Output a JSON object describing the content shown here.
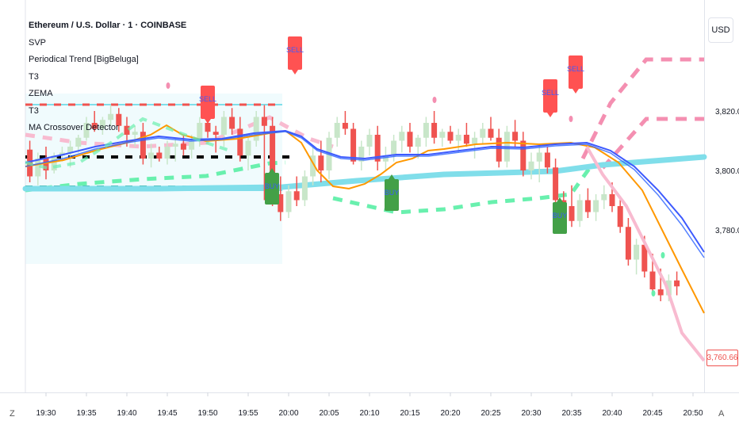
{
  "legend": {
    "title": "Ethereum / U.S. Dollar · 1 · COINBASE",
    "lines": [
      "SVP",
      "Periodical Trend [BigBeluga]",
      "T3",
      "ZEMA",
      "T3",
      "MA Crossover Detector"
    ]
  },
  "currency": "USD",
  "last_price": "3,760.66",
  "corner_left": "Z",
  "corner_right": "A",
  "colors": {
    "up": "#c8e6c9",
    "down": "#ef5350",
    "sell": "#ff5252",
    "buy": "#43a047",
    "orange": "#ff9800",
    "blue": "#3d5afe",
    "pink": "#f8bbd0",
    "cyan": "#80deea",
    "teal": "#26a69a",
    "mint": "#69f0ae"
  },
  "chart_data": {
    "type": "candlestick",
    "symbol": "Ethereum / U.S. Dollar",
    "interval": "1",
    "exchange": "COINBASE",
    "y_ticks": [
      3820,
      3800,
      3780
    ],
    "y_tick_labels": [
      "3,820.00",
      "3,800.00",
      "3,780.00"
    ],
    "x_ticks": [
      "19:30",
      "19:35",
      "19:40",
      "19:45",
      "19:50",
      "19:55",
      "20:00",
      "20:05",
      "20:10",
      "20:15",
      "20:20",
      "20:25",
      "20:30",
      "20:35",
      "20:40",
      "20:45",
      "20:50"
    ],
    "signals": [
      {
        "label": "SELL",
        "time": "19:50"
      },
      {
        "label": "SELL",
        "time": "20:00"
      },
      {
        "label": "SELL",
        "time": "20:34"
      },
      {
        "label": "SELL",
        "time": "20:36"
      },
      {
        "label": "BUY",
        "time": "19:59"
      },
      {
        "label": "BUY",
        "time": "20:13"
      },
      {
        "label": "BUY",
        "time": "20:35"
      }
    ]
  }
}
